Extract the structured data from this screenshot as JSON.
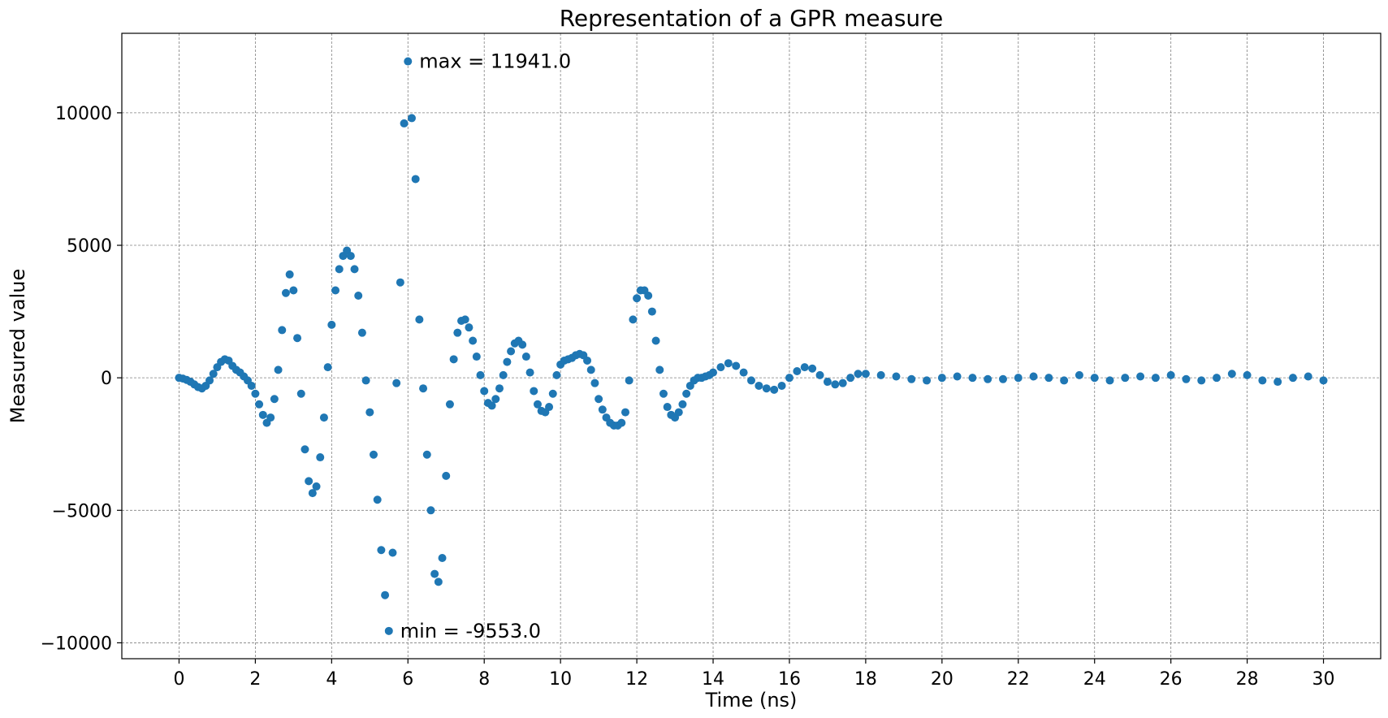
{
  "chart_data": {
    "type": "scatter",
    "title": "Representation of a GPR measure",
    "xlabel": "Time (ns)",
    "ylabel": "Measured value",
    "xlim": [
      -1.5,
      31.5
    ],
    "ylim": [
      -10600,
      13000
    ],
    "xticks": [
      0,
      2,
      4,
      6,
      8,
      10,
      12,
      14,
      16,
      18,
      20,
      22,
      24,
      26,
      28,
      30
    ],
    "xtick_labels": [
      "0",
      "2",
      "4",
      "6",
      "8",
      "10",
      "12",
      "14",
      "16",
      "18",
      "20",
      "22",
      "24",
      "26",
      "28",
      "30"
    ],
    "yticks": [
      -10000,
      -5000,
      0,
      5000,
      10000
    ],
    "ytick_labels": [
      "−10000",
      "−5000",
      "0",
      "5000",
      "10000"
    ],
    "grid": true,
    "marker_color": "#1f77b4",
    "annotations": [
      {
        "text": "max = 11941.0",
        "x": 6.0,
        "y": 11941.0
      },
      {
        "text": "min = -9553.0",
        "x": 5.5,
        "y": -9553.0
      }
    ],
    "series": [
      {
        "x": [
          0.0,
          0.1,
          0.2,
          0.3,
          0.4,
          0.5,
          0.6,
          0.7,
          0.8,
          0.9,
          1.0,
          1.1,
          1.2,
          1.3,
          1.4,
          1.5,
          1.6,
          1.7,
          1.8,
          1.9,
          2.0,
          2.1,
          2.2,
          2.3,
          2.4,
          2.5,
          2.6,
          2.7,
          2.8,
          2.9,
          3.0,
          3.1,
          3.2,
          3.3,
          3.4,
          3.5,
          3.6,
          3.7,
          3.8,
          3.9,
          4.0,
          4.1,
          4.2,
          4.3,
          4.4,
          4.5,
          4.6,
          4.7,
          4.8,
          4.9,
          5.0,
          5.1,
          5.2,
          5.3,
          5.4,
          5.5,
          5.6,
          5.7,
          5.8,
          5.9,
          6.0,
          6.1,
          6.2,
          6.3,
          6.4,
          6.5,
          6.6,
          6.7,
          6.8,
          6.9,
          7.0,
          7.1,
          7.2,
          7.3,
          7.4,
          7.5,
          7.6,
          7.7,
          7.8,
          7.9,
          8.0,
          8.1,
          8.2,
          8.3,
          8.4,
          8.5,
          8.6,
          8.7,
          8.8,
          8.9,
          9.0,
          9.1,
          9.2,
          9.3,
          9.4,
          9.5,
          9.6,
          9.7,
          9.8,
          9.9,
          10.0,
          10.1,
          10.2,
          10.3,
          10.4,
          10.5,
          10.6,
          10.7,
          10.8,
          10.9,
          11.0,
          11.1,
          11.2,
          11.3,
          11.4,
          11.5,
          11.6,
          11.7,
          11.8,
          11.9,
          12.0,
          12.1,
          12.2,
          12.3,
          12.4,
          12.5,
          12.6,
          12.7,
          12.8,
          12.9,
          13.0,
          13.1,
          13.2,
          13.3,
          13.4,
          13.5,
          13.6,
          13.7,
          13.8,
          13.9,
          14.0,
          14.2,
          14.4,
          14.6,
          14.8,
          15.0,
          15.2,
          15.4,
          15.6,
          15.8,
          16.0,
          16.2,
          16.4,
          16.6,
          16.8,
          17.0,
          17.2,
          17.4,
          17.6,
          17.8,
          18.0,
          18.4,
          18.8,
          19.2,
          19.6,
          20.0,
          20.4,
          20.8,
          21.2,
          21.6,
          22.0,
          22.4,
          22.8,
          23.2,
          23.6,
          24.0,
          24.4,
          24.8,
          25.2,
          25.6,
          26.0,
          26.4,
          26.8,
          27.2,
          27.6,
          28.0,
          28.4,
          28.8,
          29.2,
          29.6,
          30.0
        ],
        "y": [
          0,
          -30,
          -80,
          -150,
          -250,
          -350,
          -400,
          -300,
          -100,
          150,
          400,
          600,
          700,
          650,
          450,
          300,
          200,
          50,
          -100,
          -300,
          -600,
          -1000,
          -1400,
          -1700,
          -1500,
          -800,
          300,
          1800,
          3200,
          3900,
          3300,
          1500,
          -600,
          -2700,
          -3900,
          -4350,
          -4100,
          -3000,
          -1500,
          400,
          2000,
          3300,
          4100,
          4600,
          4800,
          4600,
          4100,
          3100,
          1700,
          -100,
          -1300,
          -2900,
          -4600,
          -6500,
          -8200,
          -9553,
          -6600,
          -200,
          3600,
          9600,
          11941,
          9800,
          7500,
          2200,
          -400,
          -2900,
          -5000,
          -7400,
          -7700,
          -6800,
          -3700,
          -1000,
          700,
          1700,
          2150,
          2200,
          1900,
          1400,
          800,
          100,
          -500,
          -950,
          -1050,
          -800,
          -400,
          100,
          600,
          1000,
          1300,
          1400,
          1250,
          800,
          200,
          -500,
          -1000,
          -1250,
          -1300,
          -1100,
          -600,
          100,
          500,
          650,
          700,
          750,
          850,
          900,
          850,
          650,
          300,
          -200,
          -800,
          -1200,
          -1500,
          -1700,
          -1800,
          -1800,
          -1700,
          -1300,
          -100,
          2200,
          3000,
          3300,
          3300,
          3100,
          2500,
          1400,
          300,
          -600,
          -1100,
          -1400,
          -1500,
          -1300,
          -1000,
          -600,
          -300,
          -100,
          0,
          0,
          50,
          100,
          200,
          400,
          550,
          450,
          200,
          -100,
          -300,
          -400,
          -450,
          -300,
          0,
          250,
          400,
          350,
          100,
          -150,
          -250,
          -200,
          0,
          150,
          150,
          100,
          50,
          -50,
          -100,
          0,
          50,
          0,
          -50,
          -50,
          0,
          50,
          0,
          -100,
          100,
          0,
          -100,
          0,
          50,
          0,
          100,
          -50,
          -100,
          0,
          150,
          100,
          -100,
          -150,
          0,
          50,
          -100
        ]
      }
    ]
  }
}
